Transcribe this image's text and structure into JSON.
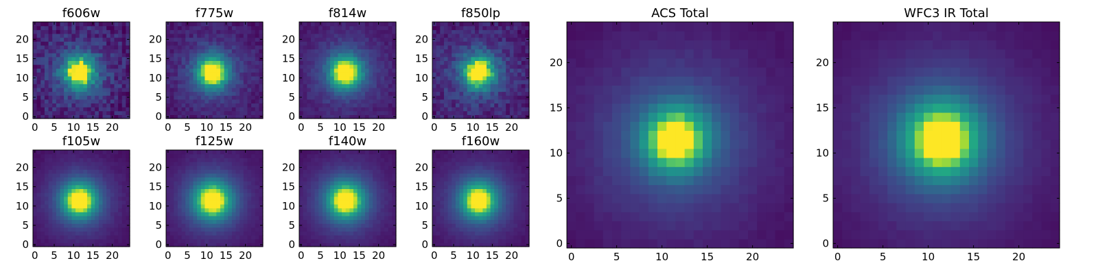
{
  "chart_data": [
    {
      "type": "heatmap",
      "title": "f606w",
      "xticks": [
        0,
        5,
        10,
        15,
        20
      ],
      "yticks": [
        0,
        5,
        10,
        15,
        20
      ],
      "xlim": [
        -0.5,
        24.5
      ],
      "ylim": [
        -0.5,
        24.5
      ],
      "grid": false,
      "center": [
        11.5,
        11.5
      ],
      "core_width": 2.8,
      "halo_width": 7.0,
      "halo_weight": 0.28,
      "noise": 0.12,
      "background": 0.08
    },
    {
      "type": "heatmap",
      "title": "f775w",
      "xticks": [
        0,
        5,
        10,
        15,
        20
      ],
      "yticks": [
        0,
        5,
        10,
        15,
        20
      ],
      "xlim": [
        -0.5,
        24.5
      ],
      "ylim": [
        -0.5,
        24.5
      ],
      "grid": false,
      "center": [
        11.5,
        11.5
      ],
      "core_width": 2.8,
      "halo_width": 7.0,
      "halo_weight": 0.28,
      "noise": 0.07,
      "background": 0.07
    },
    {
      "type": "heatmap",
      "title": "f814w",
      "xticks": [
        0,
        5,
        10,
        15,
        20
      ],
      "yticks": [
        0,
        5,
        10,
        15,
        20
      ],
      "xlim": [
        -0.5,
        24.5
      ],
      "ylim": [
        -0.5,
        24.5
      ],
      "grid": false,
      "center": [
        11.5,
        11.5
      ],
      "core_width": 2.9,
      "halo_width": 7.2,
      "halo_weight": 0.3,
      "noise": 0.05,
      "background": 0.07
    },
    {
      "type": "heatmap",
      "title": "f850lp",
      "xticks": [
        0,
        5,
        10,
        15,
        20
      ],
      "yticks": [
        0,
        5,
        10,
        15,
        20
      ],
      "xlim": [
        -0.5,
        24.5
      ],
      "ylim": [
        -0.5,
        24.5
      ],
      "grid": false,
      "center": [
        11.5,
        11.5
      ],
      "core_width": 2.8,
      "halo_width": 7.0,
      "halo_weight": 0.3,
      "noise": 0.1,
      "background": 0.08
    },
    {
      "type": "heatmap",
      "title": "f105w",
      "xticks": [
        0,
        5,
        10,
        15,
        20
      ],
      "yticks": [
        0,
        5,
        10,
        15,
        20
      ],
      "xlim": [
        -0.5,
        24.5
      ],
      "ylim": [
        -0.5,
        24.5
      ],
      "grid": false,
      "center": [
        11.5,
        11.5
      ],
      "core_width": 3.2,
      "halo_width": 7.5,
      "halo_weight": 0.33,
      "noise": 0.02,
      "background": 0.04
    },
    {
      "type": "heatmap",
      "title": "f125w",
      "xticks": [
        0,
        5,
        10,
        15,
        20
      ],
      "yticks": [
        0,
        5,
        10,
        15,
        20
      ],
      "xlim": [
        -0.5,
        24.5
      ],
      "ylim": [
        -0.5,
        24.5
      ],
      "grid": false,
      "center": [
        11.5,
        11.5
      ],
      "core_width": 3.4,
      "halo_width": 7.8,
      "halo_weight": 0.35,
      "noise": 0.02,
      "background": 0.04
    },
    {
      "type": "heatmap",
      "title": "f140w",
      "xticks": [
        0,
        5,
        10,
        15,
        20
      ],
      "yticks": [
        0,
        5,
        10,
        15,
        20
      ],
      "xlim": [
        -0.5,
        24.5
      ],
      "ylim": [
        -0.5,
        24.5
      ],
      "grid": false,
      "center": [
        11.5,
        11.5
      ],
      "core_width": 3.3,
      "halo_width": 7.8,
      "halo_weight": 0.35,
      "noise": 0.02,
      "background": 0.04
    },
    {
      "type": "heatmap",
      "title": "f160w",
      "xticks": [
        0,
        5,
        10,
        15,
        20
      ],
      "yticks": [
        0,
        5,
        10,
        15,
        20
      ],
      "xlim": [
        -0.5,
        24.5
      ],
      "ylim": [
        -0.5,
        24.5
      ],
      "grid": false,
      "center": [
        11.5,
        11.5
      ],
      "core_width": 3.2,
      "halo_width": 7.8,
      "halo_weight": 0.35,
      "noise": 0.02,
      "background": 0.04
    },
    {
      "type": "heatmap",
      "title": "ACS Total",
      "xticks": [
        0,
        5,
        10,
        15,
        20
      ],
      "yticks": [
        0,
        5,
        10,
        15,
        20
      ],
      "xlim": [
        -0.5,
        24.5
      ],
      "ylim": [
        -0.5,
        24.5
      ],
      "grid": false,
      "center": [
        11.5,
        11.5
      ],
      "core_width": 2.5,
      "halo_width": 7.0,
      "halo_weight": 0.38,
      "noise": 0.02,
      "background": 0.05
    },
    {
      "type": "heatmap",
      "title": "WFC3 IR Total",
      "xticks": [
        0,
        5,
        10,
        15,
        20
      ],
      "yticks": [
        0,
        5,
        10,
        15,
        20
      ],
      "xlim": [
        -0.5,
        24.5
      ],
      "ylim": [
        -0.5,
        24.5
      ],
      "grid": false,
      "center": [
        11.5,
        11.5
      ],
      "core_width": 3.0,
      "halo_width": 7.5,
      "halo_weight": 0.36,
      "noise": 0.015,
      "background": 0.04
    }
  ]
}
